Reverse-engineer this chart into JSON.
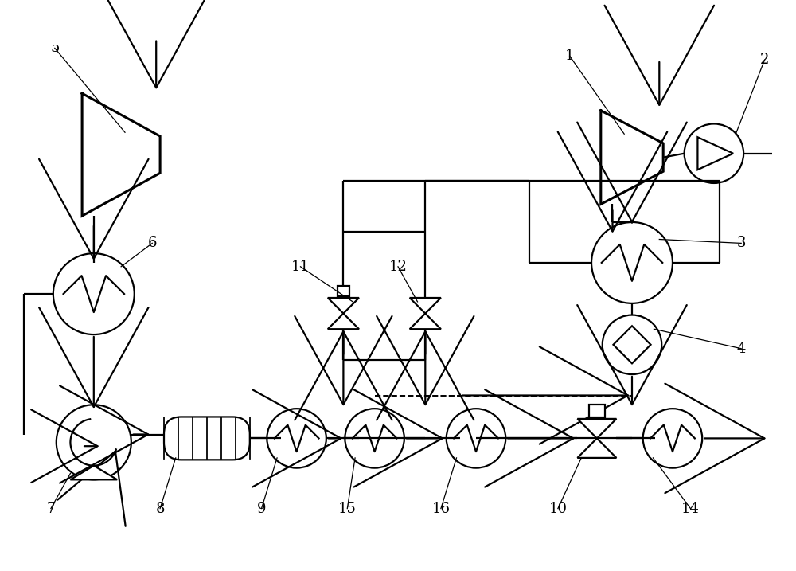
{
  "bg": "#ffffff",
  "lc": "#000000",
  "lw": 1.6,
  "fw": 10.0,
  "fh": 7.17,
  "dpi": 100
}
